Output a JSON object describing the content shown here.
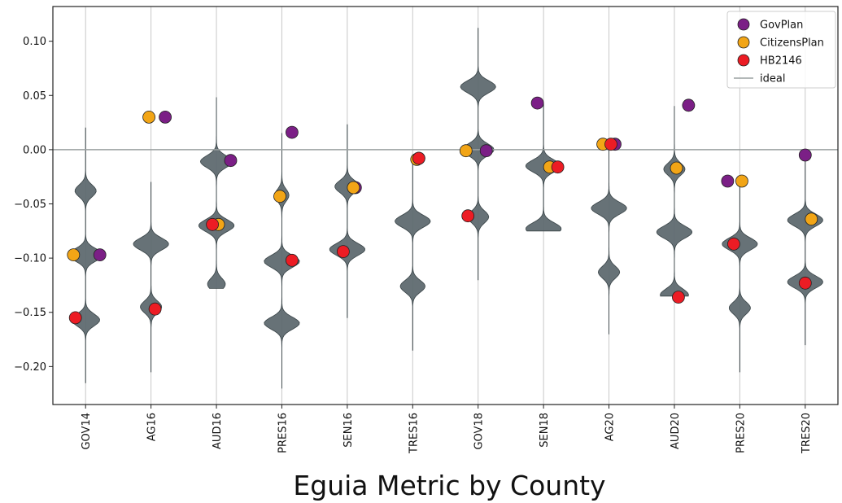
{
  "chart_data": {
    "type": "violin",
    "title": "Eguia Metric by County",
    "xlabel": "",
    "ylabel": "",
    "categories": [
      "GOV14",
      "AG16",
      "AUD16",
      "PRES16",
      "SEN16",
      "TRES16",
      "GOV18",
      "SEN18",
      "AG20",
      "AUD20",
      "PRES20",
      "TRES20"
    ],
    "ylim": [
      -0.235,
      0.132
    ],
    "yticks": [
      0.1,
      0.05,
      0.0,
      -0.05,
      -0.1,
      -0.15,
      -0.2
    ],
    "ytick_labels": [
      "0.10",
      "0.05",
      "0.00",
      "−0.05",
      "−0.10",
      "−0.15",
      "−0.20"
    ],
    "grid": "vertical",
    "legend_position": "top-right",
    "ideal": 0.0,
    "violin_color": "#5f6b70",
    "violins": [
      {
        "category": "GOV14",
        "min": -0.215,
        "max": 0.02,
        "modes": [
          {
            "y": -0.038,
            "h": 0.6
          },
          {
            "y": -0.097,
            "h": 1.0
          },
          {
            "y": -0.157,
            "h": 0.8
          }
        ]
      },
      {
        "category": "AG16",
        "min": -0.205,
        "max": -0.03,
        "modes": [
          {
            "y": -0.087,
            "h": 1.0
          },
          {
            "y": -0.145,
            "h": 0.6
          }
        ]
      },
      {
        "category": "AUD16",
        "min": -0.128,
        "max": 0.048,
        "modes": [
          {
            "y": -0.011,
            "h": 0.9
          },
          {
            "y": -0.07,
            "h": 1.0
          },
          {
            "y": -0.124,
            "h": 0.5
          }
        ]
      },
      {
        "category": "PRES16",
        "min": -0.22,
        "max": 0.015,
        "modes": [
          {
            "y": -0.042,
            "h": 0.4
          },
          {
            "y": -0.103,
            "h": 1.0
          },
          {
            "y": -0.16,
            "h": 1.0
          }
        ]
      },
      {
        "category": "SEN16",
        "min": -0.155,
        "max": 0.023,
        "modes": [
          {
            "y": -0.034,
            "h": 0.7
          },
          {
            "y": -0.092,
            "h": 1.0
          }
        ]
      },
      {
        "category": "TRES16",
        "min": -0.185,
        "max": -0.005,
        "modes": [
          {
            "y": -0.066,
            "h": 1.0
          },
          {
            "y": -0.126,
            "h": 0.7
          }
        ]
      },
      {
        "category": "GOV18",
        "min": -0.12,
        "max": 0.112,
        "modes": [
          {
            "y": 0.058,
            "h": 1.0
          },
          {
            "y": 0.0,
            "h": 0.9
          },
          {
            "y": -0.062,
            "h": 0.6
          }
        ]
      },
      {
        "category": "SEN18",
        "min": -0.075,
        "max": 0.042,
        "modes": [
          {
            "y": -0.015,
            "h": 1.0
          },
          {
            "y": -0.073,
            "h": 1.0
          }
        ]
      },
      {
        "category": "AG20",
        "min": -0.17,
        "max": 0.005,
        "modes": [
          {
            "y": -0.054,
            "h": 1.0
          },
          {
            "y": -0.113,
            "h": 0.6
          }
        ]
      },
      {
        "category": "AUD20",
        "min": -0.135,
        "max": 0.04,
        "modes": [
          {
            "y": -0.018,
            "h": 0.6
          },
          {
            "y": -0.076,
            "h": 1.0
          },
          {
            "y": -0.134,
            "h": 0.8
          }
        ]
      },
      {
        "category": "PRES20",
        "min": -0.205,
        "max": -0.028,
        "modes": [
          {
            "y": -0.087,
            "h": 1.0
          },
          {
            "y": -0.146,
            "h": 0.6
          }
        ]
      },
      {
        "category": "TRES20",
        "min": -0.18,
        "max": -0.005,
        "modes": [
          {
            "y": -0.065,
            "h": 1.0
          },
          {
            "y": -0.122,
            "h": 1.0
          }
        ]
      }
    ],
    "series": [
      {
        "name": "GovPlan",
        "color": "#7b1f86",
        "values": [
          -0.097,
          0.03,
          -0.01,
          0.016,
          -0.035,
          -0.008,
          -0.001,
          0.043,
          0.005,
          0.041,
          -0.029,
          -0.005
        ],
        "offsets": [
          0.35,
          0.35,
          0.35,
          0.25,
          0.2,
          0.15,
          0.2,
          -0.15,
          0.15,
          0.35,
          -0.3,
          0.0
        ]
      },
      {
        "name": "CitizensPlan",
        "color": "#f2a516",
        "values": [
          -0.097,
          0.03,
          -0.069,
          -0.043,
          -0.035,
          -0.009,
          -0.001,
          -0.016,
          0.005,
          -0.017,
          -0.029,
          -0.064
        ],
        "offsets": [
          -0.3,
          -0.05,
          0.05,
          -0.05,
          0.15,
          0.1,
          -0.3,
          0.15,
          -0.15,
          0.05,
          0.05,
          0.15
        ]
      },
      {
        "name": "HB2146",
        "color": "#ec1c24",
        "values": [
          -0.155,
          -0.147,
          -0.069,
          -0.102,
          -0.094,
          -0.008,
          -0.061,
          -0.016,
          0.005,
          -0.136,
          -0.087,
          -0.123
        ],
        "offsets": [
          -0.25,
          0.1,
          -0.1,
          0.25,
          -0.1,
          0.15,
          -0.25,
          0.35,
          0.05,
          0.1,
          -0.15,
          0.0
        ]
      }
    ],
    "legend": [
      "GovPlan",
      "CitizensPlan",
      "HB2146",
      "ideal"
    ]
  }
}
